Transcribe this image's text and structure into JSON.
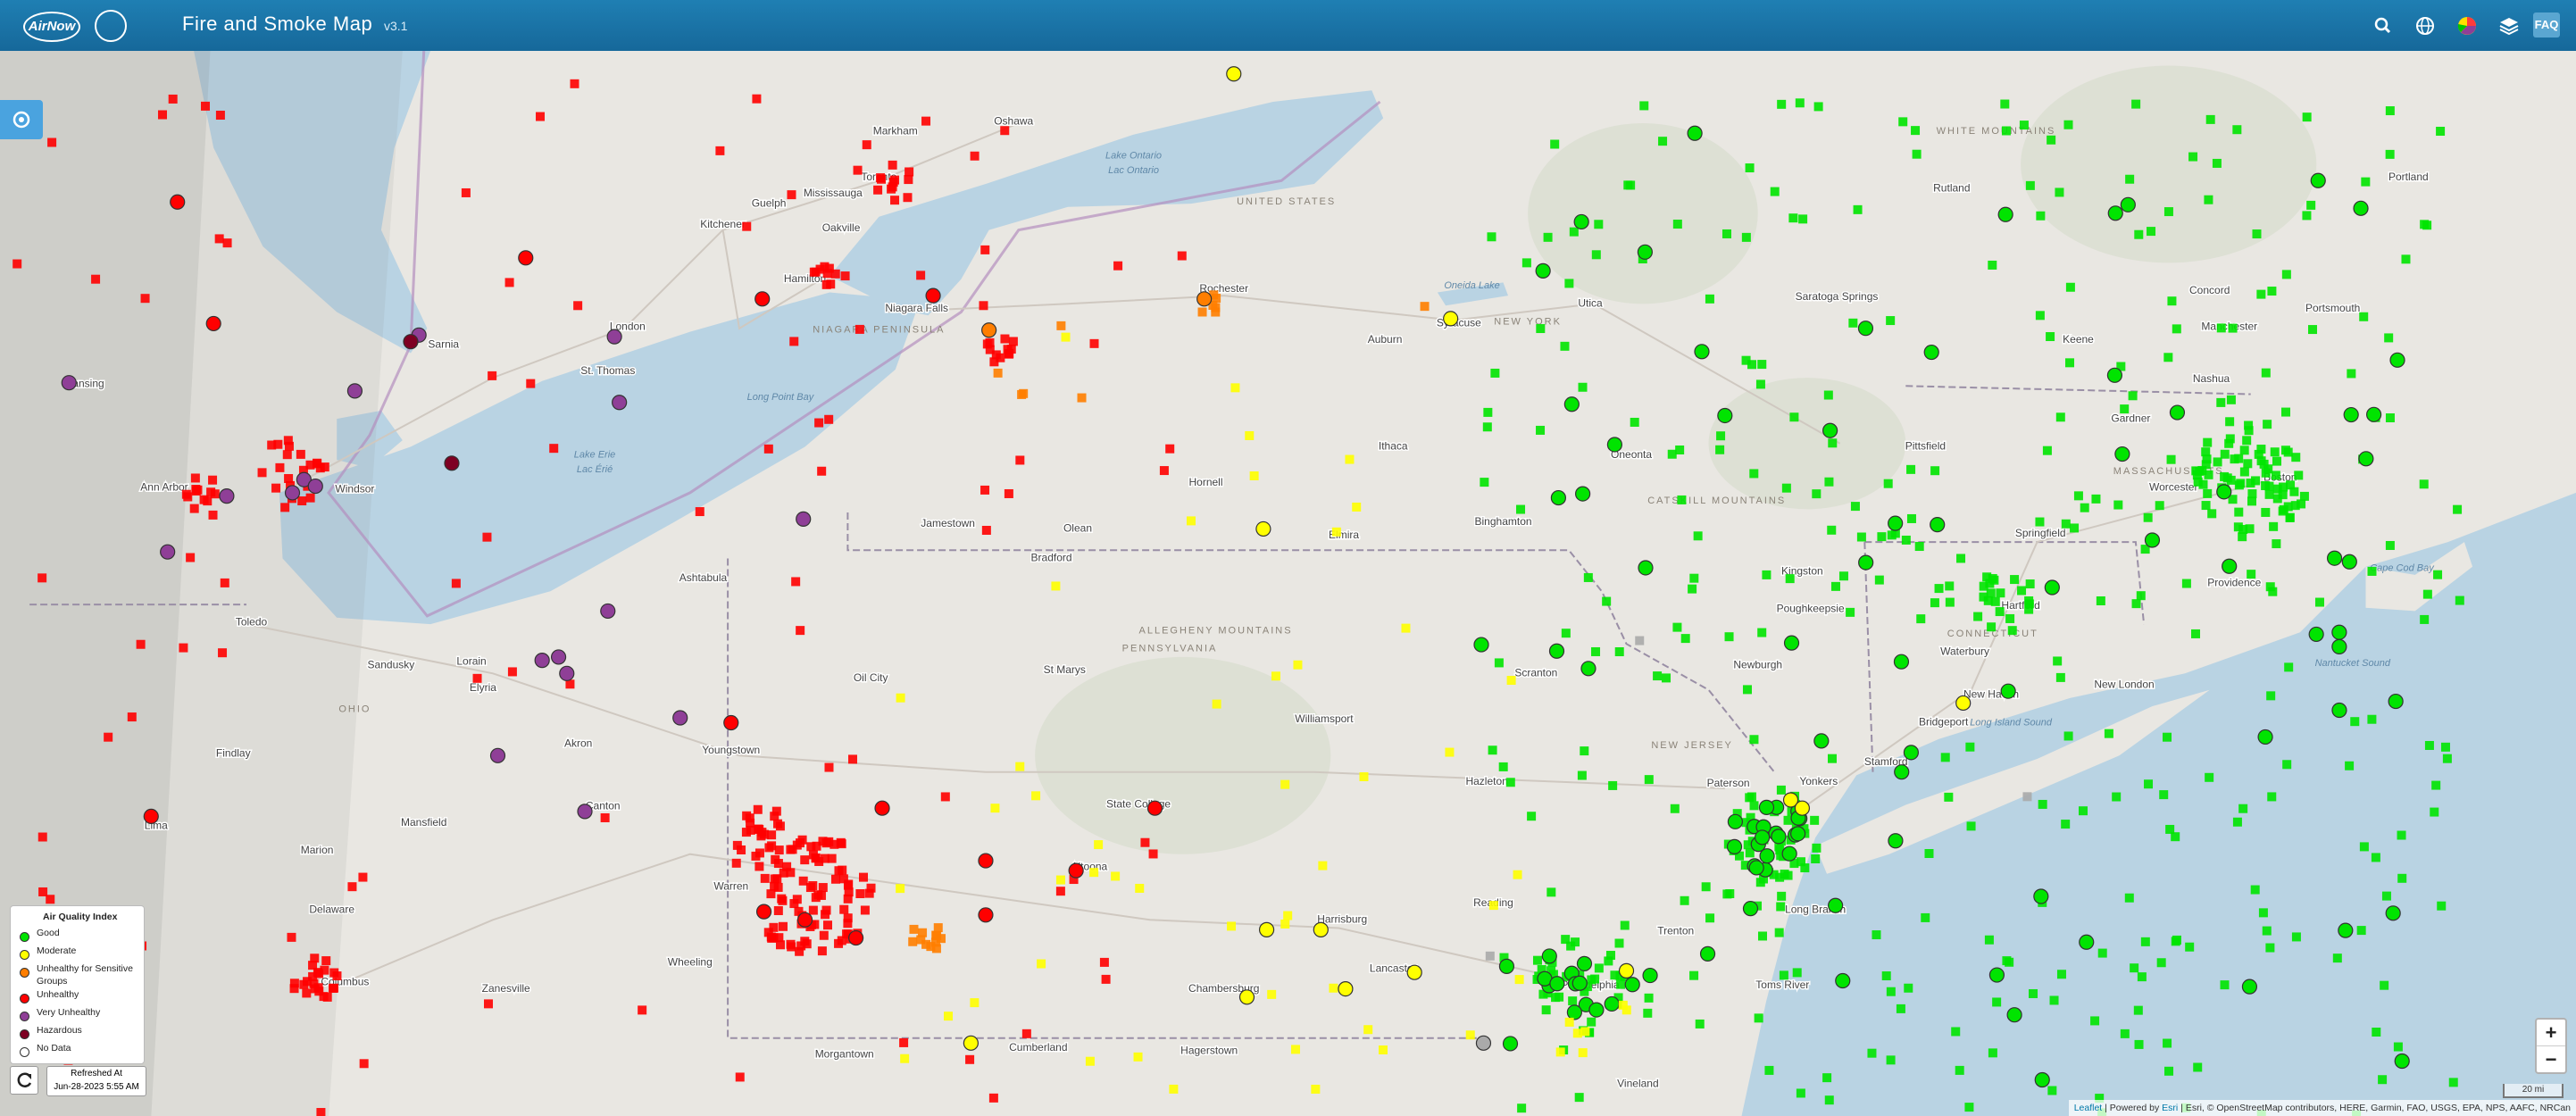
{
  "header": {
    "logo": "AirNow",
    "title": "Fire and Smoke Map",
    "version": "v3.1",
    "faq": "FAQ"
  },
  "legend": {
    "title": "Air Quality Index",
    "items": [
      "Good",
      "Moderate",
      "Unhealthy for Sensitive Groups",
      "Unhealthy",
      "Very Unhealthy",
      "Hazardous",
      "No Data"
    ]
  },
  "refresh": {
    "label": "Refreshed At",
    "time": "Jun-28-2023 5:55 AM"
  },
  "zoom": {
    "in": "+",
    "out": "−"
  },
  "scale": "20 mi",
  "attribution": [
    "Leaflet",
    "| Powered by",
    "Esri",
    "| Esri, © OpenStreetMap contributors, HERE, Garmin, FAO, USGS, EPA, NPS, AAFC, NRCan"
  ],
  "map": {
    "labels": [
      "Toronto",
      "Markham",
      "Oshawa",
      "Mississauga",
      "Oakville",
      "Hamilton",
      "Guelph",
      "Kitchener",
      "London",
      "Sarnia",
      "St. Thomas",
      "Windsor",
      "Ann Arbor",
      "Lansing",
      "Toledo",
      "Sandusky",
      "Lorain",
      "Elyria",
      "Akron",
      "Canton",
      "Youngstown",
      "Ashtabula",
      "Mansfield",
      "Columbus",
      "Zanesville",
      "Wheeling",
      "Niagara Falls",
      "Rochester",
      "Syracuse",
      "Utica",
      "Auburn",
      "Ithaca",
      "Binghamton",
      "Jamestown",
      "Olean",
      "Bradford",
      "Elmira",
      "Hornell",
      "Oneonta",
      "Saratoga Springs",
      "Pittsfield",
      "Springfield",
      "Hartford",
      "Waterbury",
      "New Haven",
      "Bridgeport",
      "Stamford",
      "Yonkers",
      "Paterson",
      "Trenton",
      "Philadelphia",
      "Reading",
      "Lancaster",
      "Harrisburg",
      "Williamsport",
      "State College",
      "Altoona",
      "Scranton",
      "Hazleton",
      "Poughkeepsie",
      "Kingston",
      "Newburgh",
      "Boston",
      "Worcester",
      "Providence",
      "Manchester",
      "Nashua",
      "Concord",
      "Portsmouth",
      "Portland",
      "Rutland",
      "Keene",
      "Gardner",
      "New London",
      "Long Branch",
      "Toms River",
      "Vineland",
      "Chambersburg",
      "Hagerstown",
      "Cumberland",
      "Morgantown",
      "Findlay",
      "Lima",
      "Marion",
      "Delaware",
      "Warren",
      "Oil City",
      "St Marys",
      "UNITED STATES",
      "NEW YORK",
      "PENNSYLVANIA",
      "ALLEGHENY MOUNTAINS",
      "CATSKILL MOUNTAINS",
      "NEW JERSEY",
      "MASSACHUSETTS",
      "CONNECTICUT",
      "OHIO",
      "NIAGARA PENINSULA",
      "WHITE MOUNTAINS",
      "Lake Ontario",
      "Lac Ontario",
      "Lake Erie",
      "Lac Érié",
      "Oneida Lake",
      "Long Island Sound",
      "Cape Cod Bay",
      "Nantucket Sound",
      "Long Point Bay"
    ]
  }
}
